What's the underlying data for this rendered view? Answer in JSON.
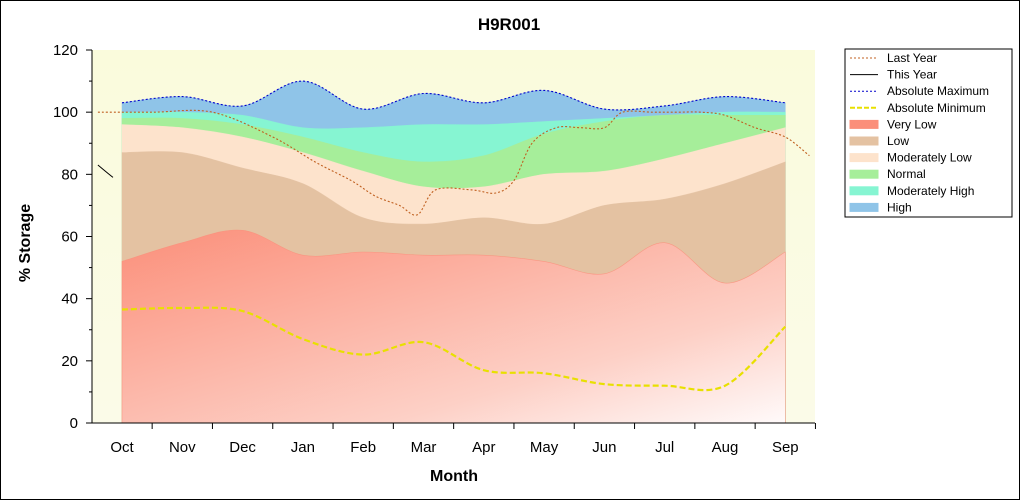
{
  "chart_data": {
    "type": "area",
    "title": "H9R001",
    "xlabel": "Month",
    "ylabel": "% Storage",
    "ylim": [
      0,
      120
    ],
    "yticks": [
      0,
      20,
      40,
      60,
      80,
      100,
      120
    ],
    "categories": [
      "Oct",
      "Nov",
      "Dec",
      "Jan",
      "Feb",
      "Mar",
      "Apr",
      "May",
      "Jun",
      "Jul",
      "Aug",
      "Sep"
    ],
    "legend_position": "right",
    "bands": [
      {
        "name": "High",
        "color": "#8fc4e8",
        "upper": [
          103,
          105,
          102,
          110,
          101,
          106,
          103,
          107,
          101,
          102,
          105,
          103
        ]
      },
      {
        "name": "Moderately High",
        "color": "#86f5d2",
        "upper": [
          100,
          100,
          99,
          95,
          95,
          96,
          96,
          97,
          98,
          99,
          100,
          100
        ]
      },
      {
        "name": "Normal",
        "color": "#a6ee9a",
        "upper": [
          98,
          98,
          96,
          92,
          87,
          84,
          86,
          93,
          97,
          99,
          99,
          99
        ]
      },
      {
        "name": "Moderately Low",
        "color": "#fde3cc",
        "upper": [
          96,
          95,
          92,
          87,
          81,
          76,
          76,
          80,
          81,
          85,
          90,
          95
        ]
      },
      {
        "name": "Low",
        "color": "#e4c2a2",
        "upper": [
          87,
          87,
          82,
          77,
          66,
          64,
          66,
          64,
          70,
          72,
          77,
          84
        ]
      },
      {
        "name": "Very Low",
        "color": "#fb8f7a",
        "upper": [
          52,
          58,
          62,
          54,
          55,
          54,
          54,
          52,
          48,
          58,
          45,
          55
        ]
      }
    ],
    "series": [
      {
        "name": "Last Year",
        "color": "#c06020",
        "style": "dotted",
        "points": [
          [
            -0.4,
            100
          ],
          [
            0.5,
            100
          ],
          [
            1.5,
            100
          ],
          [
            2.5,
            92
          ],
          [
            3.2,
            84
          ],
          [
            3.8,
            78
          ],
          [
            4.2,
            73
          ],
          [
            4.6,
            70
          ],
          [
            4.9,
            67
          ],
          [
            5.2,
            75
          ],
          [
            5.8,
            75
          ],
          [
            6.2,
            74
          ],
          [
            6.5,
            78
          ],
          [
            6.8,
            90
          ],
          [
            7.2,
            95
          ],
          [
            7.6,
            95
          ],
          [
            8.0,
            95
          ],
          [
            8.3,
            100
          ],
          [
            8.8,
            100
          ],
          [
            9.2,
            100
          ],
          [
            9.6,
            100
          ],
          [
            10.0,
            99
          ],
          [
            10.5,
            95
          ],
          [
            11.0,
            92
          ],
          [
            11.4,
            86
          ]
        ]
      },
      {
        "name": "This Year",
        "color": "#000000",
        "style": "solid",
        "points": [
          [
            -0.4,
            83
          ],
          [
            -0.15,
            79
          ]
        ]
      },
      {
        "name": "Absolute Maximum",
        "color": "#0000cc",
        "style": "dotted",
        "points": [
          [
            0,
            103
          ],
          [
            1,
            105
          ],
          [
            2,
            102
          ],
          [
            3,
            110
          ],
          [
            4,
            101
          ],
          [
            5,
            106
          ],
          [
            6,
            103
          ],
          [
            7,
            107
          ],
          [
            8,
            101
          ],
          [
            9,
            102
          ],
          [
            10,
            105
          ],
          [
            11,
            103
          ]
        ]
      },
      {
        "name": "Absolute Minimum",
        "color": "#e8e000",
        "style": "dashed",
        "points": [
          [
            0,
            36.5
          ],
          [
            1,
            37
          ],
          [
            2,
            36
          ],
          [
            3,
            27
          ],
          [
            4,
            22
          ],
          [
            5,
            26
          ],
          [
            6,
            17
          ],
          [
            7,
            16
          ],
          [
            8,
            12.5
          ],
          [
            9,
            12
          ],
          [
            10,
            12
          ],
          [
            11,
            31
          ]
        ]
      }
    ]
  }
}
